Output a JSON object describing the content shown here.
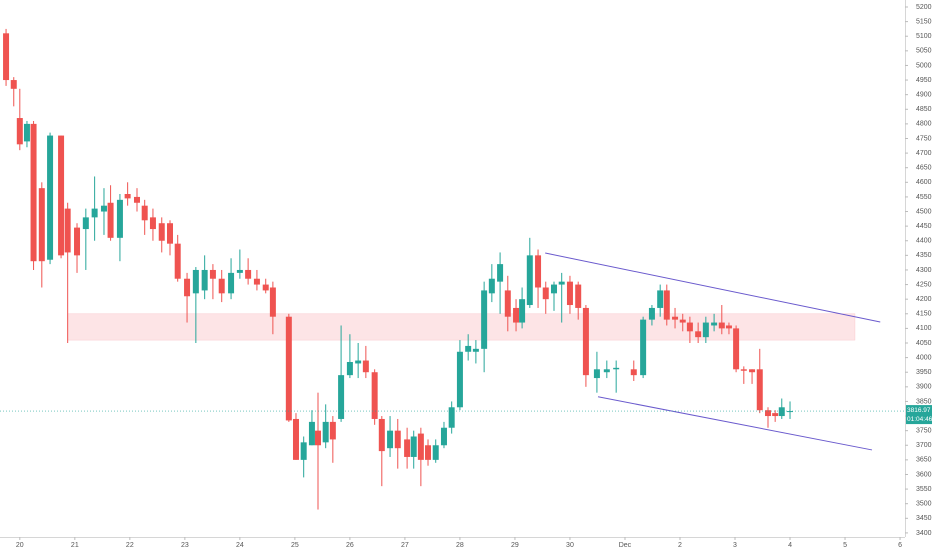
{
  "chart_data": {
    "type": "candlestick",
    "x": [
      -0.25,
      -0.11,
      0,
      0.13,
      0.25,
      0.4,
      0.55,
      0.75,
      0.87,
      1.04,
      1.2,
      1.36,
      1.53,
      1.65,
      1.82,
      1.96,
      2.13,
      2.27,
      2.42,
      2.58,
      2.73,
      2.87,
      3.04,
      3.2,
      3.36,
      3.51,
      3.67,
      3.84,
      4,
      4.15,
      4.31,
      4.47,
      4.6,
      4.89,
      5.02,
      5.16,
      5.31,
      5.42,
      5.56,
      5.69,
      5.84,
      6,
      6.15,
      6.29,
      6.45,
      6.58,
      6.73,
      6.87,
      7.04,
      7.16,
      7.29,
      7.42,
      7.56,
      7.71,
      7.85,
      8,
      8.15,
      8.29,
      8.44,
      8.58,
      8.73,
      8.87,
      9.02,
      9.13,
      9.27,
      9.42,
      9.56,
      9.71,
      9.85,
      10,
      10.15,
      10.29,
      10.49,
      10.67,
      10.84,
      11.16,
      11.33,
      11.49,
      11.64,
      11.76,
      11.91,
      12.05,
      12.18,
      12.33,
      12.47,
      12.62,
      12.76,
      12.89,
      13.02,
      13.16,
      13.31,
      13.45,
      13.6,
      13.73,
      13.85,
      14
    ],
    "open": [
      5110,
      4950,
      4820,
      4740,
      4800,
      4580,
      4335,
      4760,
      4510,
      4445,
      4440,
      4480,
      4500,
      4530,
      4410,
      4560,
      4550,
      4520,
      4480,
      4460,
      4460,
      4390,
      4270,
      4220,
      4230,
      4300,
      4270,
      4220,
      4290,
      4300,
      4270,
      4250,
      4240,
      4140,
      3790,
      3650,
      3700,
      3750,
      3710,
      3780,
      3790,
      3940,
      3980,
      3990,
      3950,
      3790,
      3690,
      3750,
      3720,
      3660,
      3740,
      3700,
      3650,
      3700,
      3760,
      3830,
      4020,
      4020,
      4030,
      4220,
      4260,
      4230,
      4170,
      4120,
      4180,
      4350,
      4240,
      4220,
      4250,
      4260,
      4250,
      4170,
      3930,
      3950,
      3960,
      3960,
      3940,
      4130,
      4170,
      4230,
      4140,
      4130,
      4120,
      4090,
      4070,
      4110,
      4120,
      4110,
      4100,
      3960,
      3960,
      3960,
      3820,
      3810,
      3800,
      3815
    ],
    "high": [
      5125,
      4960,
      4920,
      4810,
      4810,
      4600,
      4770,
      4760,
      4530,
      4460,
      4510,
      4620,
      4580,
      4590,
      4560,
      4600,
      4580,
      4540,
      4510,
      4480,
      4470,
      4420,
      4290,
      4310,
      4350,
      4320,
      4300,
      4340,
      4370,
      4340,
      4300,
      4270,
      4260,
      4150,
      3810,
      3730,
      3820,
      3880,
      3840,
      3800,
      4110,
      4080,
      4050,
      4040,
      3960,
      3800,
      3800,
      3790,
      3760,
      3750,
      3760,
      3720,
      3720,
      3780,
      3850,
      4060,
      4080,
      4060,
      4260,
      4320,
      4360,
      4280,
      4200,
      4240,
      4410,
      4370,
      4260,
      4260,
      4290,
      4280,
      4260,
      4180,
      4020,
      3990,
      3990,
      3990,
      4140,
      4180,
      4250,
      4250,
      4170,
      4150,
      4140,
      4120,
      4140,
      4150,
      4180,
      4120,
      4110,
      3970,
      3960,
      4030,
      3830,
      3820,
      3860,
      3850
    ],
    "low": [
      4930,
      4860,
      4710,
      4720,
      4300,
      4240,
      4320,
      4340,
      4050,
      4290,
      4300,
      4400,
      4420,
      4400,
      4330,
      4520,
      4500,
      4420,
      4400,
      4360,
      4350,
      4260,
      4120,
      4050,
      4200,
      4200,
      4190,
      4200,
      4270,
      4250,
      4230,
      4220,
      4080,
      3780,
      3650,
      3590,
      3700,
      3480,
      3690,
      3640,
      3780,
      3930,
      3930,
      3930,
      3770,
      3560,
      3660,
      3620,
      3620,
      3620,
      3560,
      3630,
      3640,
      3690,
      3740,
      3820,
      3990,
      3980,
      3950,
      4190,
      4150,
      4090,
      4090,
      4100,
      4170,
      4170,
      4150,
      4160,
      4120,
      4150,
      4130,
      3900,
      3880,
      3930,
      3880,
      3920,
      3930,
      4110,
      4140,
      4110,
      4100,
      4090,
      4050,
      4050,
      4050,
      4090,
      4080,
      4080,
      3950,
      3910,
      3910,
      3810,
      3760,
      3780,
      3790,
      3790
    ],
    "close": [
      4950,
      4920,
      4730,
      4800,
      4330,
      4330,
      4760,
      4350,
      4360,
      4350,
      4480,
      4510,
      4520,
      4410,
      4540,
      4545,
      4530,
      4470,
      4440,
      4400,
      4390,
      4270,
      4210,
      4300,
      4300,
      4270,
      4220,
      4290,
      4300,
      4270,
      4250,
      4230,
      4140,
      3785,
      3650,
      3710,
      3780,
      3700,
      3780,
      3720,
      3940,
      3985,
      3990,
      3950,
      3790,
      3680,
      3750,
      3690,
      3660,
      3730,
      3650,
      3650,
      3700,
      3760,
      3830,
      4020,
      4040,
      4030,
      4230,
      4270,
      4320,
      4140,
      4120,
      4200,
      4350,
      4240,
      4200,
      4250,
      4260,
      4180,
      4170,
      3940,
      3960,
      3960,
      3965,
      3940,
      4130,
      4170,
      4230,
      4130,
      4130,
      4120,
      4090,
      4070,
      4120,
      4120,
      4100,
      4100,
      3960,
      3955,
      3950,
      3820,
      3800,
      3800,
      3830,
      3817
    ],
    "up_color": "#26a69a",
    "down_color": "#ef5350",
    "xlim": [
      -0.36,
      16.09
    ],
    "ylim": [
      3386,
      5224
    ],
    "xticks": [
      {
        "value": 0,
        "label": "20"
      },
      {
        "value": 1,
        "label": "21"
      },
      {
        "value": 2,
        "label": "22"
      },
      {
        "value": 3,
        "label": "23"
      },
      {
        "value": 4,
        "label": "24"
      },
      {
        "value": 5,
        "label": "25"
      },
      {
        "value": 6,
        "label": "26"
      },
      {
        "value": 7,
        "label": "27"
      },
      {
        "value": 8,
        "label": "28"
      },
      {
        "value": 9,
        "label": "29"
      },
      {
        "value": 10,
        "label": "30"
      },
      {
        "value": 11,
        "label": "Dec"
      },
      {
        "value": 12,
        "label": "2"
      },
      {
        "value": 13,
        "label": "3"
      },
      {
        "value": 14,
        "label": "4"
      },
      {
        "value": 15,
        "label": "5"
      },
      {
        "value": 16,
        "label": "6"
      }
    ],
    "yticks": [
      {
        "value": 3400,
        "label": "3400.00"
      },
      {
        "value": 3450,
        "label": "3450.00"
      },
      {
        "value": 3500,
        "label": "3500.00"
      },
      {
        "value": 3550,
        "label": "3550.00"
      },
      {
        "value": 3600,
        "label": "3600.00"
      },
      {
        "value": 3650,
        "label": "3650.00"
      },
      {
        "value": 3700,
        "label": "3700.00"
      },
      {
        "value": 3750,
        "label": "3750.00"
      },
      {
        "value": 3800,
        "label": "3800.00"
      },
      {
        "value": 3850,
        "label": "3850.00"
      },
      {
        "value": 3900,
        "label": "3900.00"
      },
      {
        "value": 3950,
        "label": "3950.00"
      },
      {
        "value": 4000,
        "label": "4000.00"
      },
      {
        "value": 4050,
        "label": "4050.00"
      },
      {
        "value": 4100,
        "label": "4100.00"
      },
      {
        "value": 4150,
        "label": "4150.00"
      },
      {
        "value": 4200,
        "label": "4200.00"
      },
      {
        "value": 4250,
        "label": "4250.00"
      },
      {
        "value": 4300,
        "label": "4300.00"
      },
      {
        "value": 4350,
        "label": "4350.00"
      },
      {
        "value": 4400,
        "label": "4400.00"
      },
      {
        "value": 4450,
        "label": "4450.00"
      },
      {
        "value": 4500,
        "label": "4500.00"
      },
      {
        "value": 4550,
        "label": "4550.00"
      },
      {
        "value": 4600,
        "label": "4600.00"
      },
      {
        "value": 4650,
        "label": "4650.00"
      },
      {
        "value": 4700,
        "label": "4700.00"
      },
      {
        "value": 4750,
        "label": "4750.00"
      },
      {
        "value": 4800,
        "label": "4800.00"
      },
      {
        "value": 4850,
        "label": "4850.00"
      },
      {
        "value": 4900,
        "label": "4900.00"
      },
      {
        "value": 4950,
        "label": "4950.00"
      },
      {
        "value": 5000,
        "label": "5000.00"
      },
      {
        "value": 5050,
        "label": "5050.00"
      },
      {
        "value": 5100,
        "label": "5100.00"
      },
      {
        "value": 5150,
        "label": "5150.00"
      },
      {
        "value": 5200,
        "label": "5200.00"
      }
    ],
    "zone": {
      "x": [
        0.87,
        15.18
      ],
      "y": [
        4060,
        4150
      ],
      "color": "#fde4e6"
    },
    "trendlines": [
      {
        "x": [
          9.55,
          15.64
        ],
        "y": [
          4358,
          4122
        ],
        "color": "#6a5acd"
      },
      {
        "x": [
          10.51,
          15.49
        ],
        "y": [
          3866,
          3684
        ],
        "color": "#6a5acd"
      }
    ],
    "last_price": 3816.97,
    "countdown": "01:04:46"
  }
}
